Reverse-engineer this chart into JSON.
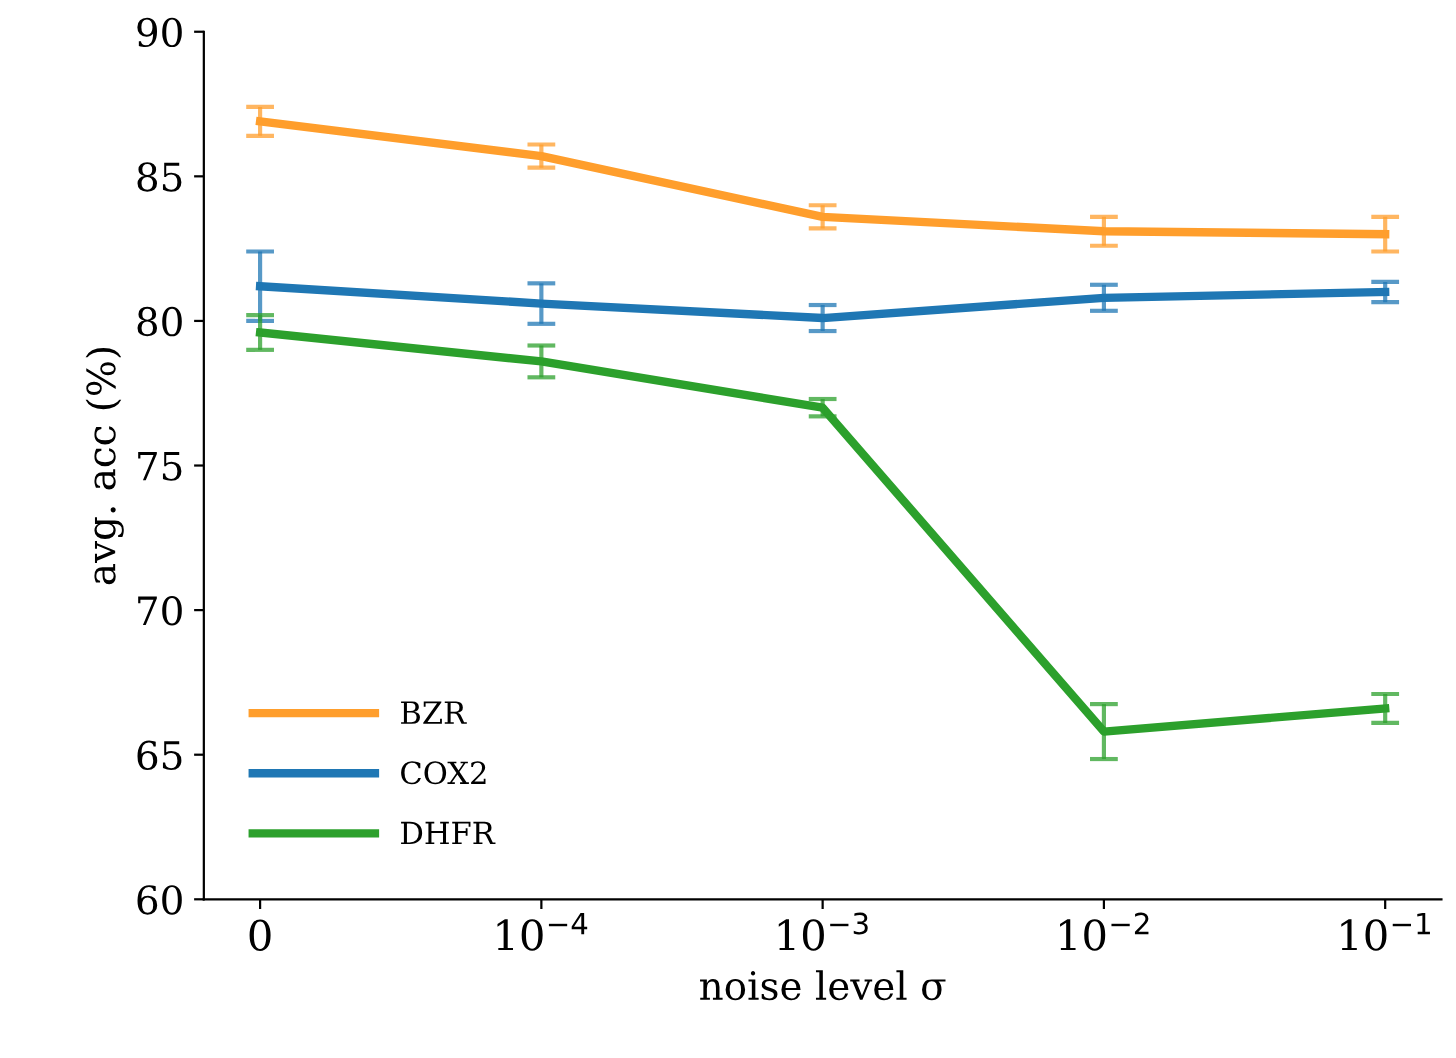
{
  "chart_data": {
    "type": "line",
    "xlabel": "noise level σ",
    "ylabel": "avg. acc (%)",
    "categories": [
      "0",
      "10$^{−4}$",
      "10$^{−3}$",
      "10$^{−2}$",
      "10$^{−1}$"
    ],
    "series": [
      {
        "name": "BZR",
        "color": "#ff9e2c",
        "values": [
          86.9,
          85.7,
          83.6,
          83.1,
          83.0
        ],
        "errors": [
          0.5,
          0.4,
          0.4,
          0.5,
          0.6
        ]
      },
      {
        "name": "COX2",
        "color": "#1f77b4",
        "values": [
          81.2,
          80.6,
          80.1,
          80.8,
          81.0
        ],
        "errors": [
          1.2,
          0.7,
          0.45,
          0.45,
          0.35
        ]
      },
      {
        "name": "DHFR",
        "color": "#2ca02c",
        "values": [
          79.6,
          78.6,
          77.0,
          65.8,
          66.6
        ],
        "errors": [
          0.6,
          0.55,
          0.3,
          0.95,
          0.5
        ]
      }
    ],
    "ylim": [
      60,
      90
    ],
    "yticks": [
      60,
      65,
      70,
      75,
      80,
      85,
      90
    ],
    "grid": false,
    "legend": "bottom left",
    "marker": "none",
    "line_style": "solid"
  }
}
